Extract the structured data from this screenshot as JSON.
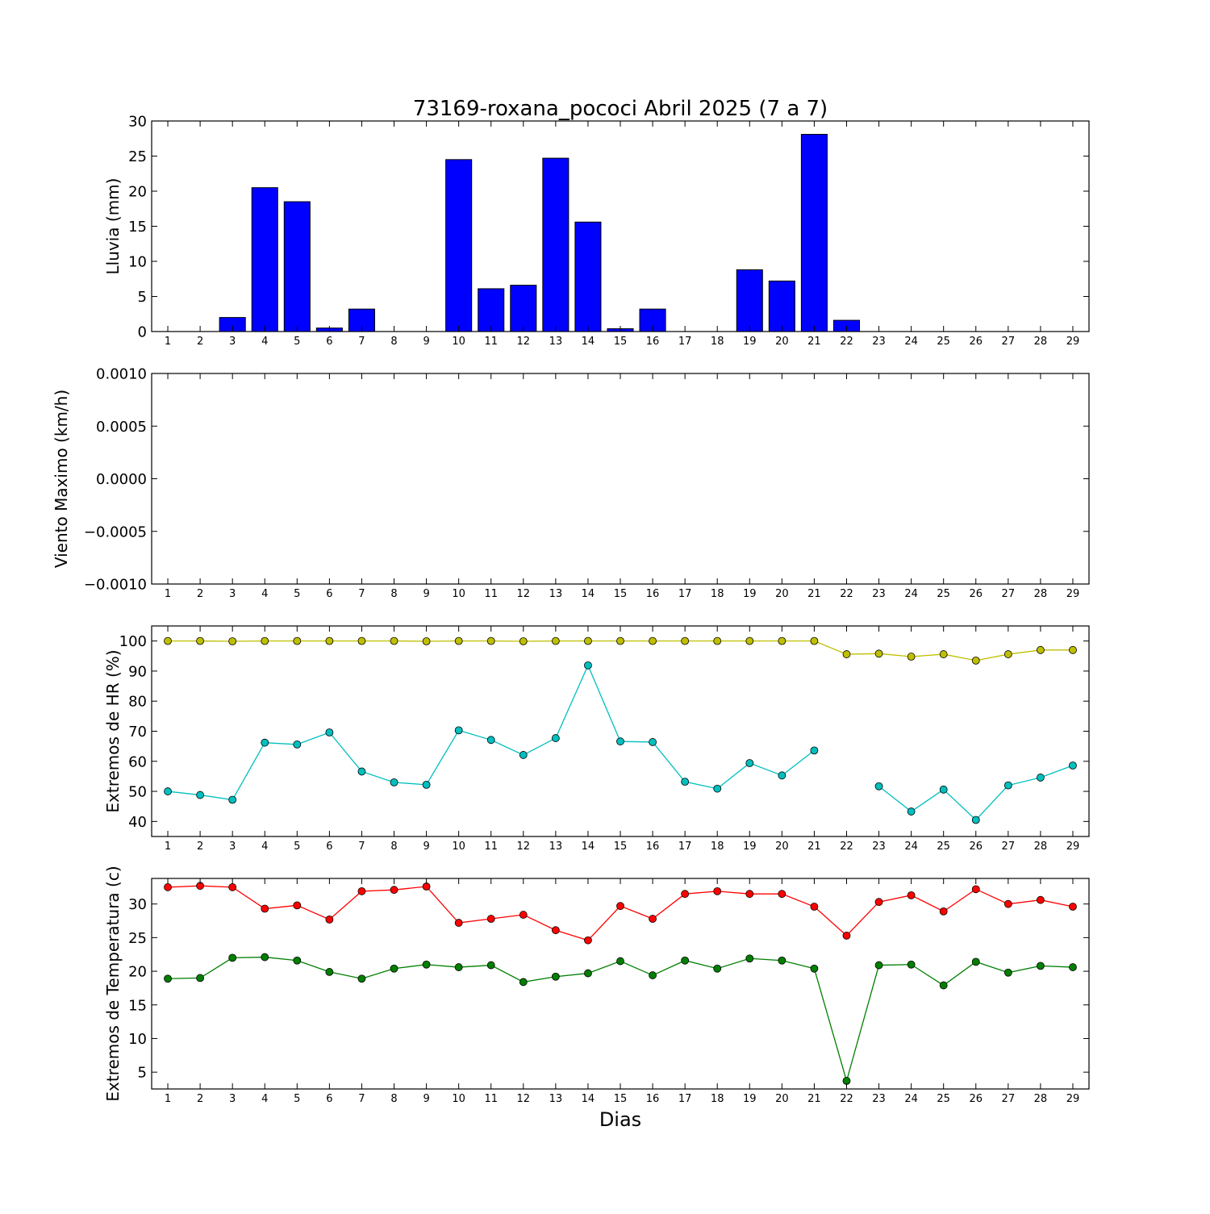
{
  "title": "73169-roxana_pococi Abril 2025  (7 a 7)",
  "xlabel": "Dias",
  "chart_data": [
    {
      "type": "bar",
      "ylabel": "Lluvia (mm)",
      "ylim": [
        0,
        30
      ],
      "yticks": [
        0,
        5,
        10,
        15,
        20,
        25,
        30
      ],
      "ytick_labels": [
        "0",
        "5",
        "10",
        "15",
        "20",
        "25",
        "30"
      ],
      "x": [
        1,
        2,
        3,
        4,
        5,
        6,
        7,
        8,
        9,
        10,
        11,
        12,
        13,
        14,
        15,
        16,
        17,
        18,
        19,
        20,
        21,
        22,
        23,
        24,
        25,
        26,
        27,
        28,
        29
      ],
      "series": [
        {
          "color": "#0000ff",
          "values": [
            0,
            0,
            2.0,
            20.5,
            18.5,
            0.5,
            3.2,
            0,
            0,
            24.5,
            6.1,
            6.6,
            24.7,
            15.6,
            0.4,
            3.2,
            0,
            0,
            8.8,
            7.2,
            28.1,
            1.6,
            0,
            0,
            0,
            0,
            0,
            0,
            0
          ]
        }
      ]
    },
    {
      "type": "line",
      "ylabel": "Viento Maximo (km/h)",
      "ylim": [
        -0.001,
        0.001
      ],
      "yticks": [
        -0.001,
        -0.0005,
        0,
        0.0005,
        0.001
      ],
      "ytick_labels": [
        "−0.0010",
        "−0.0005",
        "0.0000",
        "0.0005",
        "0.0010"
      ],
      "x": [
        1,
        2,
        3,
        4,
        5,
        6,
        7,
        8,
        9,
        10,
        11,
        12,
        13,
        14,
        15,
        16,
        17,
        18,
        19,
        20,
        21,
        22,
        23,
        24,
        25,
        26,
        27,
        28,
        29
      ],
      "series": []
    },
    {
      "type": "line",
      "ylabel": "Extremos de HR (%)",
      "ylim": [
        35,
        105
      ],
      "yticks": [
        40,
        50,
        60,
        70,
        80,
        90,
        100
      ],
      "ytick_labels": [
        "40",
        "50",
        "60",
        "70",
        "80",
        "90",
        "100"
      ],
      "x": [
        1,
        2,
        3,
        4,
        5,
        6,
        7,
        8,
        9,
        10,
        11,
        12,
        13,
        14,
        15,
        16,
        17,
        18,
        19,
        20,
        21,
        22,
        23,
        24,
        25,
        26,
        27,
        28,
        29
      ],
      "series": [
        {
          "color": "#bfbf00",
          "values": [
            100,
            100,
            99.9,
            100,
            100,
            100,
            100,
            100,
            99.9,
            100,
            100,
            99.9,
            100,
            100,
            100,
            100,
            100,
            100,
            100,
            100,
            100,
            95.6,
            95.8,
            94.8,
            95.6,
            93.5,
            95.6,
            97,
            97
          ]
        },
        {
          "color": "#00bfbf",
          "values": [
            50,
            48.8,
            47.2,
            66.2,
            65.6,
            69.6,
            56.6,
            53,
            52.2,
            70.3,
            67.1,
            62.1,
            67.7,
            91.9,
            66.6,
            66.4,
            53.2,
            50.9,
            59.4,
            55.3,
            63.6,
            null,
            51.7,
            43.3,
            50.6,
            40.5,
            52,
            54.6,
            58.6
          ]
        }
      ]
    },
    {
      "type": "line",
      "ylabel": "Extremos de Temperatura (c)",
      "ylim": [
        2.5,
        33.8
      ],
      "yticks": [
        5,
        10,
        15,
        20,
        25,
        30
      ],
      "ytick_labels": [
        "5",
        "10",
        "15",
        "20",
        "25",
        "30"
      ],
      "x": [
        1,
        2,
        3,
        4,
        5,
        6,
        7,
        8,
        9,
        10,
        11,
        12,
        13,
        14,
        15,
        16,
        17,
        18,
        19,
        20,
        21,
        22,
        23,
        24,
        25,
        26,
        27,
        28,
        29
      ],
      "series": [
        {
          "color": "#ff0000",
          "values": [
            32.5,
            32.7,
            32.5,
            29.3,
            29.8,
            27.7,
            31.9,
            32.1,
            32.6,
            27.2,
            27.8,
            28.4,
            26.1,
            24.6,
            29.7,
            27.8,
            31.5,
            31.9,
            31.5,
            31.5,
            29.6,
            25.3,
            30.3,
            31.3,
            28.9,
            32.2,
            30.0,
            30.6,
            29.6
          ]
        },
        {
          "color": "#007f00",
          "values": [
            18.9,
            19.0,
            22.0,
            22.1,
            21.6,
            19.9,
            18.9,
            20.4,
            21.0,
            20.6,
            20.9,
            18.4,
            19.2,
            19.7,
            21.5,
            19.4,
            21.6,
            20.4,
            21.9,
            21.6,
            20.4,
            3.7,
            20.9,
            21.0,
            17.9,
            21.4,
            19.8,
            20.8,
            20.6
          ]
        }
      ]
    }
  ]
}
